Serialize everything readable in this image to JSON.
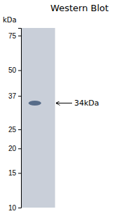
{
  "chart_data": {
    "type": "blot",
    "title": "Western Blot",
    "y_label": "kDa",
    "log": "y",
    "ylim": [
      10,
      82
    ],
    "yticks": [
      75,
      50,
      37,
      25,
      20,
      15,
      10
    ],
    "values": [
      34
    ],
    "value_labels": [
      "34kDa"
    ],
    "data_labels": true,
    "color": "#4a6080",
    "tick_labels": "y"
  }
}
